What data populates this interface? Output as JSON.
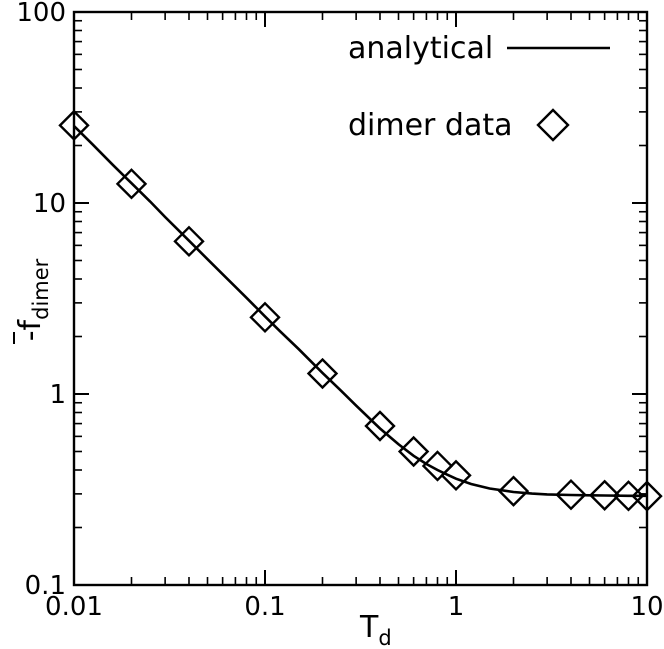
{
  "chart_data": {
    "type": "line",
    "x_scale": "log",
    "y_scale": "log",
    "xlim": [
      0.01,
      10
    ],
    "ylim": [
      0.1,
      100
    ],
    "xlabel": {
      "main": "T",
      "sub": "d"
    },
    "ylabel": {
      "prefix": "-",
      "main": "f",
      "overline": true,
      "sub": "dimer"
    },
    "x_ticks": [
      {
        "value": 0.01,
        "label": "0.01"
      },
      {
        "value": 0.1,
        "label": "0.1"
      },
      {
        "value": 1,
        "label": "1"
      },
      {
        "value": 10,
        "label": "10"
      }
    ],
    "y_ticks": [
      {
        "value": 0.1,
        "label": "0.1"
      },
      {
        "value": 1,
        "label": "1"
      },
      {
        "value": 10,
        "label": "10"
      },
      {
        "value": 100,
        "label": "100"
      }
    ],
    "legend": {
      "position": "top-right",
      "entries": [
        {
          "label": "analytical",
          "style": "line"
        },
        {
          "label": "dimer data",
          "style": "diamond"
        }
      ]
    },
    "series": [
      {
        "name": "analytical",
        "style": "line",
        "x": [
          0.01,
          0.0125,
          0.016,
          0.02,
          0.025,
          0.03,
          0.04,
          0.05,
          0.06,
          0.07,
          0.08,
          0.1,
          0.12,
          0.15,
          0.2,
          0.25,
          0.3,
          0.4,
          0.5,
          0.6,
          0.7,
          0.8,
          0.9,
          1.0,
          1.2,
          1.5,
          2.0,
          2.5,
          3.0,
          4.0,
          5.0,
          6.0,
          8.0,
          10.0
        ],
        "y": [
          25.3,
          20.3,
          15.8,
          12.7,
          10.2,
          8.45,
          6.35,
          5.08,
          4.24,
          3.64,
          3.19,
          2.55,
          2.13,
          1.72,
          1.29,
          1.04,
          0.87,
          0.66,
          0.545,
          0.475,
          0.43,
          0.4,
          0.378,
          0.36,
          0.338,
          0.32,
          0.307,
          0.301,
          0.298,
          0.296,
          0.295,
          0.294,
          0.293,
          0.293
        ]
      },
      {
        "name": "dimer data",
        "style": "diamond",
        "x": [
          0.01,
          0.02,
          0.04,
          0.1,
          0.2,
          0.4,
          0.6,
          0.8,
          1.0,
          2.0,
          4.0,
          6.0,
          8.0,
          10.0
        ],
        "y": [
          25.5,
          12.6,
          6.3,
          2.52,
          1.28,
          0.68,
          0.5,
          0.42,
          0.375,
          0.31,
          0.297,
          0.295,
          0.293,
          0.292
        ]
      }
    ]
  }
}
